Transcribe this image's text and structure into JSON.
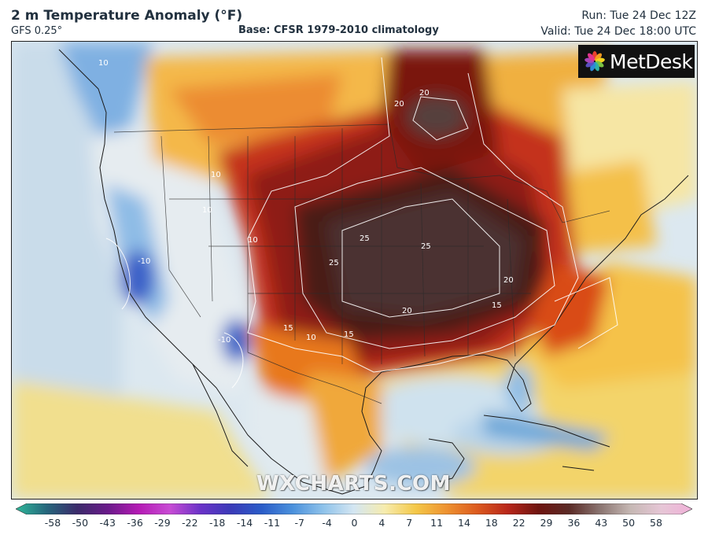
{
  "header": {
    "title": "2 m Temperature Anomaly (°F)",
    "model": "GFS 0.25°",
    "base": "Base: CFSR 1979-2010 climatology",
    "run": "Run: Tue 24 Dec 12Z",
    "valid": "Valid: Tue 24 Dec 18:00 UTC"
  },
  "logo": {
    "text": "MetDesk"
  },
  "watermark": "WXCHARTS.COM",
  "map": {
    "region": "North America",
    "contour_labels": [
      {
        "value": "10"
      },
      {
        "value": "20"
      },
      {
        "value": "20"
      },
      {
        "value": "10"
      },
      {
        "value": "10"
      },
      {
        "value": "10"
      },
      {
        "value": "25"
      },
      {
        "value": "25"
      },
      {
        "value": "25"
      },
      {
        "value": "20"
      },
      {
        "value": "15"
      },
      {
        "value": "20"
      },
      {
        "value": "15"
      },
      {
        "value": "15"
      },
      {
        "value": "10"
      },
      {
        "value": "-10"
      },
      {
        "value": "-10"
      }
    ]
  },
  "colorbar": {
    "labels": [
      "-58",
      "-50",
      "-43",
      "-36",
      "-29",
      "-22",
      "-18",
      "-14",
      "-11",
      "-7",
      "-4",
      "0",
      "4",
      "7",
      "11",
      "14",
      "18",
      "22",
      "29",
      "36",
      "43",
      "50",
      "58"
    ],
    "colors": [
      "#2fb89a",
      "#25667c",
      "#3a2a6a",
      "#6a1a8a",
      "#b41ab4",
      "#c84bd4",
      "#6a32c8",
      "#3a3ab8",
      "#2a5cc8",
      "#4a90dc",
      "#8ec2ea",
      "#d4e6f2",
      "#f6ecae",
      "#f4c848",
      "#ee9230",
      "#dc5a1e",
      "#b8261a",
      "#6e1410",
      "#5a2a26",
      "#8a7470",
      "#c6b8b4",
      "#e6c6d6",
      "#f0b0d8"
    ]
  }
}
